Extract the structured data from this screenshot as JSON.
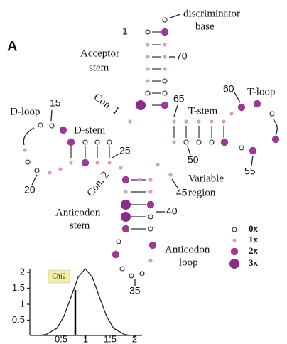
{
  "panel": "A",
  "acceptor": {
    "discriminator": [
      "discriminator",
      "base"
    ],
    "stem": [
      "Acceptor",
      "stem"
    ],
    "pos_1": "1",
    "pos_70": "70"
  },
  "connector_1": "Con. 1",
  "connector_2": "Con. 2",
  "d_arm": {
    "loop": "D-loop",
    "stem": "D-stem",
    "pos_15": "15",
    "pos_20": "20",
    "pos_25": "25"
  },
  "t_arm": {
    "loop": "T-loop",
    "stem": "T-stem",
    "pos_50": "50",
    "pos_55": "55",
    "pos_60": "60",
    "pos_65": "65"
  },
  "variable": {
    "label": [
      "Variable",
      "region"
    ],
    "pos_45": "45"
  },
  "anticodon": {
    "stem": [
      "Anticodon",
      "stem"
    ],
    "loop": [
      "Anticodon",
      "loop"
    ],
    "pos_35": "35",
    "pos_40": "40"
  },
  "legend": [
    "0x",
    "1x",
    "2x",
    "3x"
  ],
  "inset": {
    "label": "Chi2",
    "xticks": [
      0.5,
      1,
      1.5,
      2
    ],
    "yticks": [
      0.5,
      1,
      1.5,
      2
    ]
  }
}
